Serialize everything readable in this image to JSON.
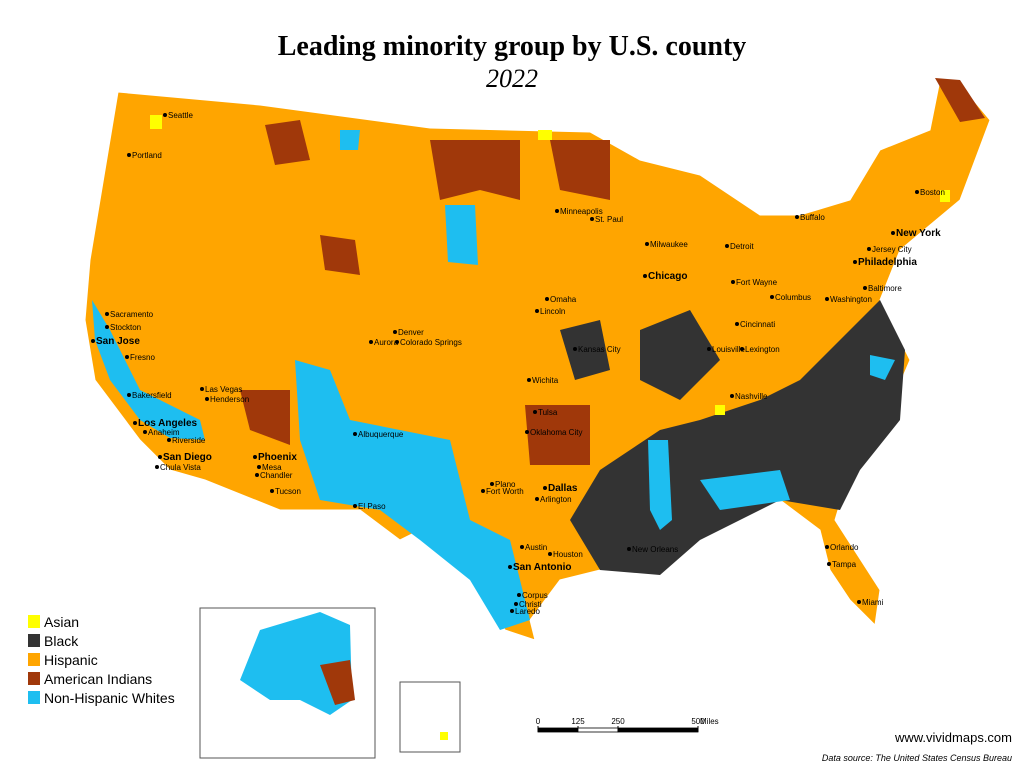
{
  "title": "Leading minority group by U.S. county",
  "subtitle": "2022",
  "legend": [
    {
      "label": "Asian",
      "color": "#ffff00"
    },
    {
      "label": "Black",
      "color": "#333333"
    },
    {
      "label": "Hispanic",
      "color": "#ffa500"
    },
    {
      "label": "American Indians",
      "color": "#a0380a"
    },
    {
      "label": "Non-Hispanic Whites",
      "color": "#1ebef0"
    }
  ],
  "cities": [
    "Seattle",
    "Portland",
    "Sacramento",
    "Stockton",
    "San Jose",
    "Fresno",
    "Bakersfield",
    "Las Vegas",
    "Henderson",
    "Los Angeles",
    "Anaheim",
    "Riverside",
    "San Diego",
    "Chula Vista",
    "Phoenix",
    "Mesa",
    "Chandler",
    "Tucson",
    "Denver",
    "Aurora",
    "Colorado Springs",
    "Albuquerque",
    "El Paso",
    "Omaha",
    "Lincoln",
    "Wichita",
    "Kansas City",
    "Oklahoma City",
    "Tulsa",
    "Plano",
    "Dallas",
    "Fort Worth",
    "Arlington",
    "Austin",
    "San Antonio",
    "Houston",
    "Corpus",
    "Christi",
    "Laredo",
    "Minneapolis",
    "St. Paul",
    "Milwaukee",
    "Chicago",
    "Detroit",
    "Fort Wayne",
    "Columbus",
    "Cincinnati",
    "Louisville",
    "Lexington",
    "Nashville",
    "Buffalo",
    "Baltimore",
    "Washington",
    "Philadelphia",
    "New York",
    "Jersey City",
    "Boston",
    "Orlando",
    "Tampa",
    "Miami",
    "New Orleans"
  ],
  "scale": {
    "ticks": [
      0,
      125,
      250,
      500
    ],
    "unit": "Miles"
  },
  "website": "www.vividmaps.com",
  "source": "Data source: The United States Census Bureau"
}
